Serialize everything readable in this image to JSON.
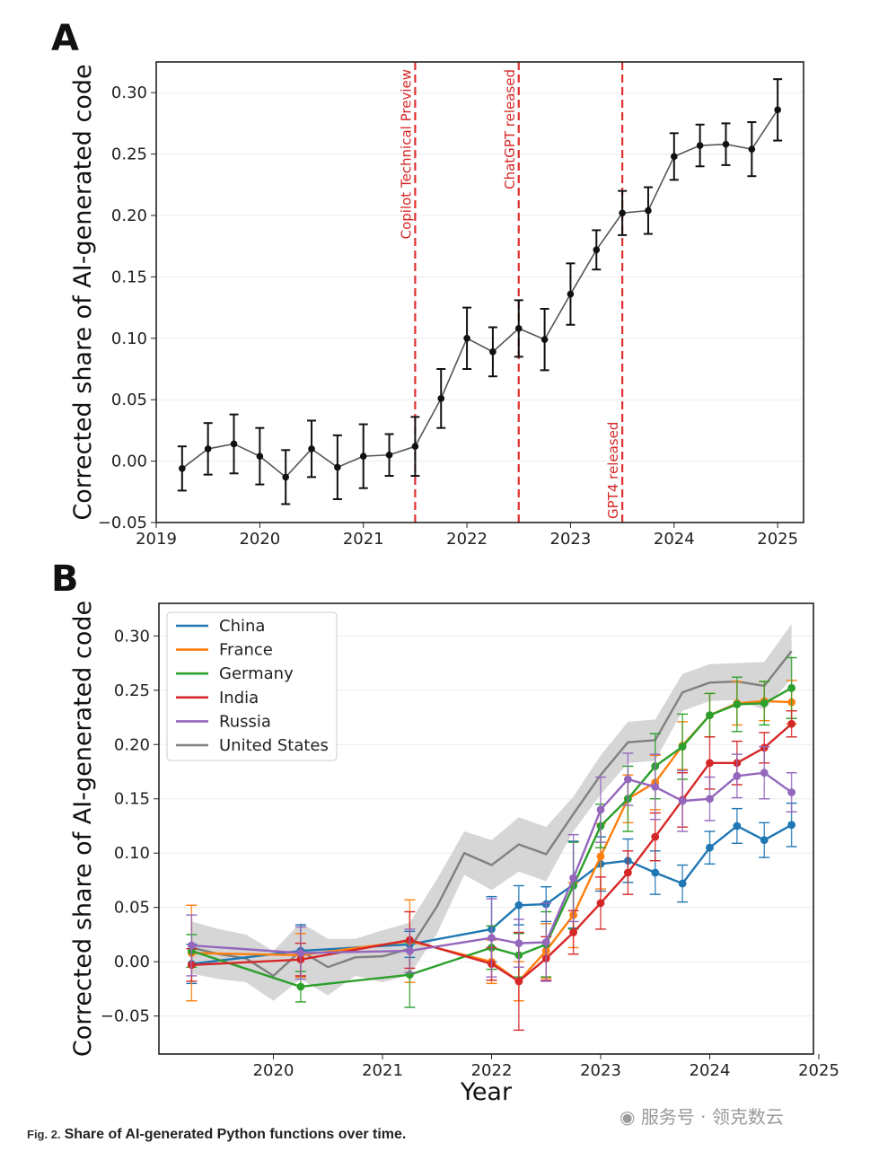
{
  "caption": {
    "fig_label": "Fig. 2.",
    "title": "Share of AI-generated Python functions over time."
  },
  "watermark": {
    "text": "服务号 · 领克数云"
  },
  "chart_data": [
    {
      "panel": "A",
      "type": "line",
      "ylabel": "Corrected share of AI-generated code",
      "xlabel": "",
      "xlim": [
        2019,
        2025.25
      ],
      "ylim": [
        -0.05,
        0.325
      ],
      "xticks": [
        "2019",
        "2020",
        "2021",
        "2022",
        "2023",
        "2024",
        "2025"
      ],
      "yticks": [
        "−0.05",
        "0.00",
        "0.05",
        "0.10",
        "0.15",
        "0.20",
        "0.25",
        "0.30"
      ],
      "grid": true,
      "series": [
        {
          "name": "United States",
          "color": "#555555",
          "x": [
            2019.25,
            2019.5,
            2019.75,
            2020.0,
            2020.25,
            2020.5,
            2020.75,
            2021.0,
            2021.25,
            2021.5,
            2021.75,
            2022.0,
            2022.25,
            2022.5,
            2022.75,
            2023.0,
            2023.25,
            2023.5,
            2023.75,
            2024.0,
            2024.25,
            2024.5,
            2024.75,
            2025.0
          ],
          "y": [
            -0.006,
            0.01,
            0.014,
            0.004,
            -0.013,
            0.01,
            -0.005,
            0.004,
            0.005,
            0.012,
            0.051,
            0.1,
            0.089,
            0.108,
            0.099,
            0.136,
            0.172,
            0.202,
            0.204,
            0.248,
            0.257,
            0.258,
            0.254,
            0.286
          ],
          "err": [
            0.018,
            0.021,
            0.024,
            0.023,
            0.022,
            0.023,
            0.026,
            0.026,
            0.017,
            0.024,
            0.024,
            0.025,
            0.02,
            0.023,
            0.025,
            0.025,
            0.016,
            0.018,
            0.019,
            0.019,
            0.017,
            0.017,
            0.022,
            0.025
          ]
        }
      ],
      "annotations": [
        {
          "x": 2021.5,
          "text": "Copilot Technical Preview",
          "label_pos": "top"
        },
        {
          "x": 2022.5,
          "text": "ChatGPT released",
          "label_pos": "top"
        },
        {
          "x": 2023.5,
          "text": "GPT4 released",
          "label_pos": "bottom"
        }
      ]
    },
    {
      "panel": "B",
      "type": "line",
      "ylabel": "Corrected share of AI-generated code",
      "xlabel": "Year",
      "xlim": [
        2019.0,
        2025.0
      ],
      "ylim": [
        -0.085,
        0.33
      ],
      "xticks": [
        "2020",
        "2021",
        "2022",
        "2023",
        "2024",
        "2025"
      ],
      "yticks": [
        "−0.05",
        "0.00",
        "0.05",
        "0.10",
        "0.15",
        "0.20",
        "0.25",
        "0.30"
      ],
      "grid": true,
      "legend": "top-left",
      "legend_entries": [
        "China",
        "France",
        "Germany",
        "India",
        "Russia",
        "United States"
      ],
      "band": {
        "name": "United States",
        "color": "#808080",
        "x": [
          2019.25,
          2019.5,
          2019.75,
          2020.0,
          2020.25,
          2020.5,
          2020.75,
          2021.0,
          2021.25,
          2021.5,
          2021.75,
          2022.0,
          2022.25,
          2022.5,
          2022.75,
          2023.0,
          2023.25,
          2023.5,
          2023.75,
          2024.0,
          2024.25,
          2024.5,
          2024.75
        ],
        "y": [
          0.013,
          0.007,
          0.003,
          -0.013,
          0.01,
          -0.005,
          0.004,
          0.005,
          0.012,
          0.051,
          0.1,
          0.089,
          0.108,
          0.099,
          0.136,
          0.172,
          0.202,
          0.204,
          0.248,
          0.257,
          0.258,
          0.254,
          0.286
        ],
        "err": [
          0.024,
          0.023,
          0.022,
          0.023,
          0.026,
          0.026,
          0.017,
          0.024,
          0.024,
          0.025,
          0.02,
          0.023,
          0.025,
          0.025,
          0.016,
          0.018,
          0.019,
          0.019,
          0.017,
          0.017,
          0.017,
          0.022,
          0.025
        ]
      },
      "series": [
        {
          "name": "China",
          "color": "#1f77b4",
          "x": [
            2019.25,
            2020.25,
            2021.25,
            2022.0,
            2022.25,
            2022.5,
            2022.75,
            2023.0,
            2023.25,
            2023.5,
            2023.75,
            2024.0,
            2024.25,
            2024.5,
            2024.75
          ],
          "y": [
            -0.002,
            0.01,
            0.016,
            0.03,
            0.052,
            0.053,
            0.071,
            0.09,
            0.093,
            0.082,
            0.072,
            0.105,
            0.125,
            0.112,
            0.126
          ],
          "err": [
            0.018,
            0.024,
            0.012,
            0.03,
            0.018,
            0.016,
            0.04,
            0.025,
            0.02,
            0.02,
            0.017,
            0.015,
            0.016,
            0.016,
            0.02
          ]
        },
        {
          "name": "France",
          "color": "#ff7f0e",
          "x": [
            2019.25,
            2020.25,
            2021.25,
            2022.0,
            2022.25,
            2022.5,
            2022.75,
            2023.0,
            2023.25,
            2023.5,
            2023.75,
            2024.0,
            2024.25,
            2024.5,
            2024.75
          ],
          "y": [
            0.008,
            0.006,
            0.019,
            0.0,
            -0.018,
            0.01,
            0.043,
            0.097,
            0.15,
            0.165,
            0.199,
            0.227,
            0.238,
            0.24,
            0.239
          ],
          "err": [
            0.044,
            0.02,
            0.038,
            0.02,
            0.018,
            0.025,
            0.03,
            0.03,
            0.022,
            0.025,
            0.022,
            0.02,
            0.02,
            0.018,
            0.02
          ]
        },
        {
          "name": "Germany",
          "color": "#2ca02c",
          "x": [
            2019.25,
            2020.25,
            2021.25,
            2022.0,
            2022.25,
            2022.5,
            2022.75,
            2023.0,
            2023.25,
            2023.5,
            2023.75,
            2024.0,
            2024.25,
            2024.5,
            2024.75
          ],
          "y": [
            0.01,
            -0.023,
            -0.012,
            0.013,
            0.006,
            0.016,
            0.07,
            0.125,
            0.15,
            0.18,
            0.198,
            0.227,
            0.237,
            0.238,
            0.252
          ],
          "err": [
            0.015,
            0.014,
            0.03,
            0.02,
            0.02,
            0.03,
            0.04,
            0.02,
            0.03,
            0.03,
            0.03,
            0.02,
            0.025,
            0.02,
            0.028
          ]
        },
        {
          "name": "India",
          "color": "#d62728",
          "x": [
            2019.25,
            2020.25,
            2021.25,
            2022.0,
            2022.25,
            2022.5,
            2022.75,
            2023.0,
            2023.25,
            2023.5,
            2023.75,
            2024.0,
            2024.25,
            2024.5,
            2024.75
          ],
          "y": [
            -0.003,
            0.002,
            0.02,
            -0.002,
            -0.018,
            0.003,
            0.027,
            0.054,
            0.082,
            0.115,
            0.149,
            0.183,
            0.183,
            0.197,
            0.219
          ],
          "err": [
            0.015,
            0.015,
            0.026,
            0.015,
            0.045,
            0.02,
            0.02,
            0.024,
            0.02,
            0.022,
            0.025,
            0.024,
            0.02,
            0.014,
            0.012
          ]
        },
        {
          "name": "Russia",
          "color": "#9467bd",
          "x": [
            2019.25,
            2020.25,
            2021.25,
            2022.0,
            2022.25,
            2022.5,
            2022.75,
            2023.0,
            2023.25,
            2023.5,
            2023.75,
            2024.0,
            2024.25,
            2024.5,
            2024.75
          ],
          "y": [
            0.015,
            0.008,
            0.01,
            0.022,
            0.017,
            0.018,
            0.077,
            0.14,
            0.168,
            0.161,
            0.148,
            0.15,
            0.171,
            0.174,
            0.156
          ],
          "err": [
            0.028,
            0.024,
            0.02,
            0.036,
            0.022,
            0.036,
            0.04,
            0.03,
            0.024,
            0.03,
            0.028,
            0.02,
            0.02,
            0.024,
            0.018
          ]
        }
      ]
    }
  ]
}
